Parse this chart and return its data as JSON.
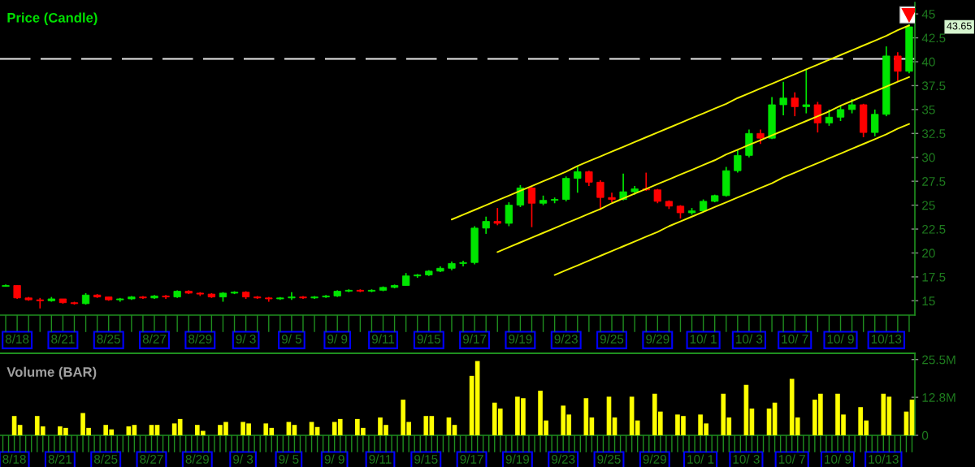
{
  "chart_data": [
    {
      "type": "candlestick",
      "title": "Price (Candle)",
      "categories": [
        null,
        "8/18",
        null,
        null,
        null,
        "8/21",
        null,
        null,
        null,
        "8/25",
        null,
        null,
        null,
        "8/27",
        null,
        null,
        null,
        "8/29",
        null,
        null,
        null,
        "9/ 3",
        null,
        null,
        null,
        "9/ 5",
        null,
        null,
        null,
        "9/ 9",
        null,
        null,
        null,
        "9/11",
        null,
        null,
        null,
        "9/15",
        null,
        null,
        null,
        "9/17",
        null,
        null,
        null,
        "9/19",
        null,
        null,
        null,
        "9/23",
        null,
        null,
        null,
        "9/25",
        null,
        null,
        null,
        "9/29",
        null,
        null,
        null,
        "10/ 1",
        null,
        null,
        null,
        "10/ 3",
        null,
        null,
        null,
        "10/ 7",
        null,
        null,
        null,
        "10/ 9",
        null,
        null,
        null,
        "10/13",
        null,
        null
      ],
      "ohlc": [
        [
          16.5,
          16.7,
          16.5,
          16.6
        ],
        [
          16.6,
          16.6,
          15.2,
          15.3
        ],
        [
          15.3,
          15.4,
          15.0,
          15.1
        ],
        [
          15.1,
          15.3,
          14.2,
          15.0
        ],
        [
          15.0,
          15.4,
          14.9,
          15.2
        ],
        [
          15.2,
          15.2,
          14.7,
          14.8
        ],
        [
          14.8,
          14.9,
          14.6,
          14.7
        ],
        [
          14.7,
          15.8,
          14.6,
          15.6
        ],
        [
          15.6,
          15.7,
          15.3,
          15.4
        ],
        [
          15.4,
          15.4,
          15.0,
          15.1
        ],
        [
          15.1,
          15.3,
          14.9,
          15.2
        ],
        [
          15.2,
          15.5,
          15.1,
          15.4
        ],
        [
          15.4,
          15.5,
          15.2,
          15.3
        ],
        [
          15.3,
          15.6,
          15.2,
          15.5
        ],
        [
          15.5,
          15.6,
          15.2,
          15.4
        ],
        [
          15.4,
          16.1,
          15.3,
          16.0
        ],
        [
          16.0,
          16.1,
          15.7,
          15.8
        ],
        [
          15.8,
          15.9,
          15.5,
          15.7
        ],
        [
          15.7,
          15.8,
          15.3,
          15.4
        ],
        [
          15.4,
          15.9,
          14.9,
          15.8
        ],
        [
          15.8,
          16.0,
          15.7,
          15.9
        ],
        [
          15.9,
          16.0,
          15.2,
          15.4
        ],
        [
          15.4,
          15.5,
          15.2,
          15.3
        ],
        [
          15.3,
          15.4,
          14.9,
          15.2
        ],
        [
          15.2,
          15.4,
          15.1,
          15.3
        ],
        [
          15.3,
          15.9,
          15.1,
          15.4
        ],
        [
          15.4,
          15.5,
          15.2,
          15.3
        ],
        [
          15.3,
          15.5,
          15.2,
          15.4
        ],
        [
          15.4,
          15.6,
          15.3,
          15.5
        ],
        [
          15.5,
          16.1,
          15.4,
          16.0
        ],
        [
          16.0,
          16.2,
          15.9,
          16.1
        ],
        [
          16.1,
          16.2,
          15.9,
          16.0
        ],
        [
          16.0,
          16.2,
          15.9,
          16.1
        ],
        [
          16.1,
          16.5,
          16.0,
          16.4
        ],
        [
          16.4,
          16.7,
          16.3,
          16.6
        ],
        [
          16.6,
          17.9,
          16.6,
          17.6
        ],
        [
          17.6,
          17.8,
          17.4,
          17.7
        ],
        [
          17.7,
          18.2,
          17.6,
          18.1
        ],
        [
          18.1,
          18.6,
          18.0,
          18.4
        ],
        [
          18.4,
          19.1,
          18.2,
          18.9
        ],
        [
          18.9,
          19.2,
          18.6,
          19.0
        ],
        [
          19.0,
          22.8,
          18.8,
          22.6
        ],
        [
          22.6,
          23.8,
          22.0,
          23.3
        ],
        [
          23.3,
          24.7,
          22.9,
          23.1
        ],
        [
          23.1,
          25.3,
          22.8,
          25.0
        ],
        [
          25.0,
          27.1,
          24.8,
          26.8
        ],
        [
          26.8,
          26.9,
          22.7,
          25.2
        ],
        [
          25.2,
          26.0,
          25.0,
          25.5
        ],
        [
          25.5,
          25.8,
          25.2,
          25.6
        ],
        [
          25.6,
          28.0,
          25.4,
          27.8
        ],
        [
          27.8,
          29.1,
          26.3,
          28.5
        ],
        [
          28.5,
          28.6,
          27.0,
          27.4
        ],
        [
          27.4,
          27.6,
          24.5,
          25.8
        ],
        [
          25.8,
          26.3,
          25.3,
          25.6
        ],
        [
          25.6,
          28.3,
          25.5,
          26.4
        ],
        [
          26.4,
          27.0,
          26.1,
          26.7
        ],
        [
          26.7,
          28.4,
          26.5,
          26.6
        ],
        [
          26.6,
          26.7,
          25.2,
          25.4
        ],
        [
          25.4,
          25.5,
          24.6,
          24.9
        ],
        [
          24.9,
          25.0,
          23.6,
          24.2
        ],
        [
          24.2,
          24.7,
          24.0,
          24.4
        ],
        [
          24.4,
          25.6,
          24.3,
          25.4
        ],
        [
          25.4,
          26.1,
          25.3,
          26.0
        ],
        [
          26.0,
          29.0,
          25.9,
          28.6
        ],
        [
          28.6,
          30.8,
          28.4,
          30.2
        ],
        [
          30.2,
          32.9,
          30.0,
          32.5
        ],
        [
          32.5,
          32.9,
          31.4,
          32.0
        ],
        [
          32.0,
          36.3,
          31.9,
          35.5
        ],
        [
          35.5,
          37.9,
          34.4,
          36.2
        ],
        [
          36.2,
          36.8,
          34.3,
          35.3
        ],
        [
          35.3,
          39.2,
          34.6,
          35.5
        ],
        [
          35.5,
          35.8,
          32.6,
          33.6
        ],
        [
          33.6,
          35.0,
          33.3,
          34.2
        ],
        [
          34.2,
          35.4,
          33.8,
          35.0
        ],
        [
          35.0,
          36.1,
          34.6,
          35.5
        ],
        [
          35.5,
          35.6,
          32.1,
          32.6
        ],
        [
          32.6,
          35.0,
          32.2,
          34.5
        ],
        [
          34.5,
          41.6,
          34.3,
          40.6
        ],
        [
          40.6,
          41.0,
          37.9,
          39.0
        ],
        [
          39.0,
          43.9,
          38.8,
          43.65
        ]
      ],
      "colors": [
        "#00e600",
        "#ff0000",
        "#ff0000",
        "#ff0000",
        "#00e600",
        "#ff0000",
        "#ff0000",
        "#00e600",
        "#ff0000",
        "#ff0000",
        "#00e600",
        "#00e600",
        "#ff0000",
        "#00e600",
        "#ff0000",
        "#00e600",
        "#ff0000",
        "#ff0000",
        "#ff0000",
        "#00e600",
        "#00e600",
        "#ff0000",
        "#ff0000",
        "#ff0000",
        "#00e600",
        "#00e600",
        "#ff0000",
        "#00e600",
        "#00e600",
        "#00e600",
        "#00e600",
        "#ff0000",
        "#00e600",
        "#00e600",
        "#00e600",
        "#00e600",
        "#00e600",
        "#00e600",
        "#00e600",
        "#00e600",
        "#00e600",
        "#00e600",
        "#00e600",
        "#ff0000",
        "#00e600",
        "#00e600",
        "#ff0000",
        "#00e600",
        "#00e600",
        "#00e600",
        "#00e600",
        "#ff0000",
        "#ff0000",
        "#ff0000",
        "#00e600",
        "#00e600",
        "#ff0000",
        "#ff0000",
        "#ff0000",
        "#ff0000",
        "#00e600",
        "#00e600",
        "#00e600",
        "#00e600",
        "#00e600",
        "#00e600",
        "#ff0000",
        "#00e600",
        "#00e600",
        "#ff0000",
        "#00e600",
        "#ff0000",
        "#00e600",
        "#00e600",
        "#00e600",
        "#ff0000",
        "#00e600",
        "#00e600",
        "#ff0000",
        "#00e600"
      ],
      "series": [
        {
          "type": "line",
          "color": "#f0f000",
          "values": [
            null,
            null,
            null,
            null,
            null,
            null,
            null,
            null,
            null,
            null,
            null,
            null,
            null,
            null,
            null,
            null,
            null,
            null,
            null,
            null,
            null,
            null,
            null,
            null,
            null,
            null,
            null,
            null,
            null,
            null,
            null,
            null,
            null,
            null,
            null,
            null,
            null,
            null,
            null,
            23.5,
            24.0,
            24.5,
            25.0,
            25.5,
            26.0,
            26.5,
            27.0,
            27.5,
            28.0,
            28.5,
            29.1,
            29.6,
            30.1,
            30.6,
            31.1,
            31.6,
            32.1,
            32.6,
            33.1,
            33.6,
            34.1,
            34.6,
            35.1,
            35.6,
            36.2,
            36.7,
            37.2,
            37.7,
            38.2,
            38.7,
            39.2,
            39.7,
            40.2,
            40.7,
            41.2,
            41.7,
            42.2,
            42.7,
            43.3,
            43.8
          ]
        },
        {
          "type": "line",
          "color": "#f0f000",
          "values": [
            null,
            null,
            null,
            null,
            null,
            null,
            null,
            null,
            null,
            null,
            null,
            null,
            null,
            null,
            null,
            null,
            null,
            null,
            null,
            null,
            null,
            null,
            null,
            null,
            null,
            null,
            null,
            null,
            null,
            null,
            null,
            null,
            null,
            null,
            null,
            null,
            null,
            null,
            null,
            null,
            null,
            null,
            null,
            20.1,
            20.6,
            21.1,
            21.6,
            22.1,
            22.6,
            23.1,
            23.6,
            24.1,
            24.6,
            25.2,
            25.7,
            26.2,
            26.7,
            27.2,
            27.7,
            28.2,
            28.7,
            29.2,
            29.7,
            30.3,
            30.8,
            31.3,
            31.8,
            32.3,
            32.8,
            33.3,
            33.8,
            34.3,
            34.8,
            35.4,
            35.9,
            36.4,
            36.9,
            37.4,
            37.9,
            38.4
          ]
        },
        {
          "type": "line",
          "color": "#f0f000",
          "values": [
            null,
            null,
            null,
            null,
            null,
            null,
            null,
            null,
            null,
            null,
            null,
            null,
            null,
            null,
            null,
            null,
            null,
            null,
            null,
            null,
            null,
            null,
            null,
            null,
            null,
            null,
            null,
            null,
            null,
            null,
            null,
            null,
            null,
            null,
            null,
            null,
            null,
            null,
            null,
            null,
            null,
            null,
            null,
            null,
            null,
            null,
            null,
            null,
            17.7,
            18.2,
            18.7,
            19.2,
            19.7,
            20.2,
            20.7,
            21.2,
            21.7,
            22.2,
            22.8,
            23.3,
            23.8,
            24.3,
            24.8,
            25.3,
            25.8,
            26.3,
            26.8,
            27.3,
            27.9,
            28.4,
            28.9,
            29.4,
            29.9,
            30.4,
            30.9,
            31.4,
            31.9,
            32.4,
            33.0,
            33.5
          ]
        }
      ],
      "ylim": [
        13.5,
        46.2
      ],
      "yticks": [
        15,
        17.5,
        20,
        22.5,
        25,
        27.5,
        30,
        32.5,
        35,
        37.5,
        40,
        42.5,
        45
      ],
      "ref_lines": [
        {
          "axis": "y",
          "value": 40.3,
          "color": "#e8e8e8",
          "line_style": "dashed"
        }
      ],
      "annotations": [
        "43.65"
      ]
    },
    {
      "type": "bar",
      "title": "Volume (BAR)",
      "categories": [
        null,
        null,
        "8/18",
        null,
        null,
        null,
        null,
        null,
        null,
        null,
        "8/21",
        null,
        null,
        null,
        null,
        null,
        null,
        null,
        "8/25",
        null,
        null,
        null,
        null,
        null,
        null,
        null,
        "8/27",
        null,
        null,
        null,
        null,
        null,
        null,
        null,
        "8/29",
        null,
        null,
        null,
        null,
        null,
        null,
        null,
        "9/ 3",
        null,
        null,
        null,
        null,
        null,
        null,
        null,
        "9/ 5",
        null,
        null,
        null,
        null,
        null,
        null,
        null,
        "9/ 9",
        null,
        null,
        null,
        null,
        null,
        null,
        null,
        "9/11",
        null,
        null,
        null,
        null,
        null,
        null,
        null,
        "9/15",
        null,
        null,
        null,
        null,
        null,
        null,
        null,
        "9/17",
        null,
        null,
        null,
        null,
        null,
        null,
        null,
        "9/19",
        null,
        null,
        null,
        null,
        null,
        null,
        null,
        "9/23",
        null,
        null,
        null,
        null,
        null,
        null,
        null,
        "9/25",
        null,
        null,
        null,
        null,
        null,
        null,
        null,
        "9/29",
        null,
        null,
        null,
        null,
        null,
        null,
        null,
        "10/ 1",
        null,
        null,
        null,
        null,
        null,
        null,
        null,
        "10/ 3",
        null,
        null,
        null,
        null,
        null,
        null,
        null,
        "10/ 7",
        null,
        null,
        null,
        null,
        null,
        null,
        null,
        "10/ 9",
        null,
        null,
        null,
        null,
        null,
        null,
        null,
        "10/13",
        null,
        null,
        null,
        null,
        null
      ],
      "values": [
        null,
        null,
        6.5,
        3.5,
        null,
        null,
        6.5,
        3.0,
        null,
        null,
        3.0,
        2.5,
        null,
        null,
        7.5,
        2.5,
        null,
        null,
        3.5,
        2.0,
        null,
        null,
        3.0,
        3.5,
        null,
        null,
        3.5,
        3.5,
        null,
        null,
        4.0,
        5.5,
        null,
        null,
        3.5,
        1.5,
        null,
        null,
        3.5,
        4.5,
        null,
        null,
        4.5,
        4.0,
        null,
        null,
        4.0,
        2.5,
        null,
        null,
        4.5,
        3.5,
        null,
        null,
        4.5,
        2.8,
        null,
        null,
        4.5,
        5.5,
        null,
        null,
        5.5,
        2.5,
        null,
        null,
        6.0,
        3.5,
        null,
        null,
        12.0,
        4.5,
        null,
        null,
        6.5,
        6.5,
        null,
        null,
        6.0,
        3.5,
        null,
        null,
        20.0,
        25.0,
        null,
        null,
        11.0,
        9.0,
        null,
        null,
        13.0,
        12.5,
        null,
        null,
        15.0,
        5.0,
        null,
        null,
        10.0,
        7.0,
        null,
        null,
        12.5,
        6.0,
        null,
        null,
        13.0,
        6.0,
        null,
        null,
        13.0,
        5.0,
        null,
        null,
        14.0,
        8.0,
        null,
        null,
        7.0,
        6.5,
        null,
        null,
        7.0,
        4.0,
        null,
        null,
        14.0,
        6.0,
        null,
        null,
        17.0,
        9.0,
        null,
        null,
        9.0,
        11.0,
        null,
        null,
        19.0,
        6.0,
        null,
        null,
        12.0,
        14.0,
        null,
        null,
        14.0,
        7.0,
        null,
        null,
        9.5,
        5.0,
        null,
        null,
        14.0,
        13.0,
        null,
        null,
        8.0,
        12.0
      ],
      "color": "#ffff00",
      "ylim": [
        0,
        27.6
      ],
      "yticks": [
        0,
        {
          "value": 12.8,
          "label": "12.8M"
        },
        {
          "value": 25.5,
          "label": "25.5M"
        }
      ]
    }
  ]
}
